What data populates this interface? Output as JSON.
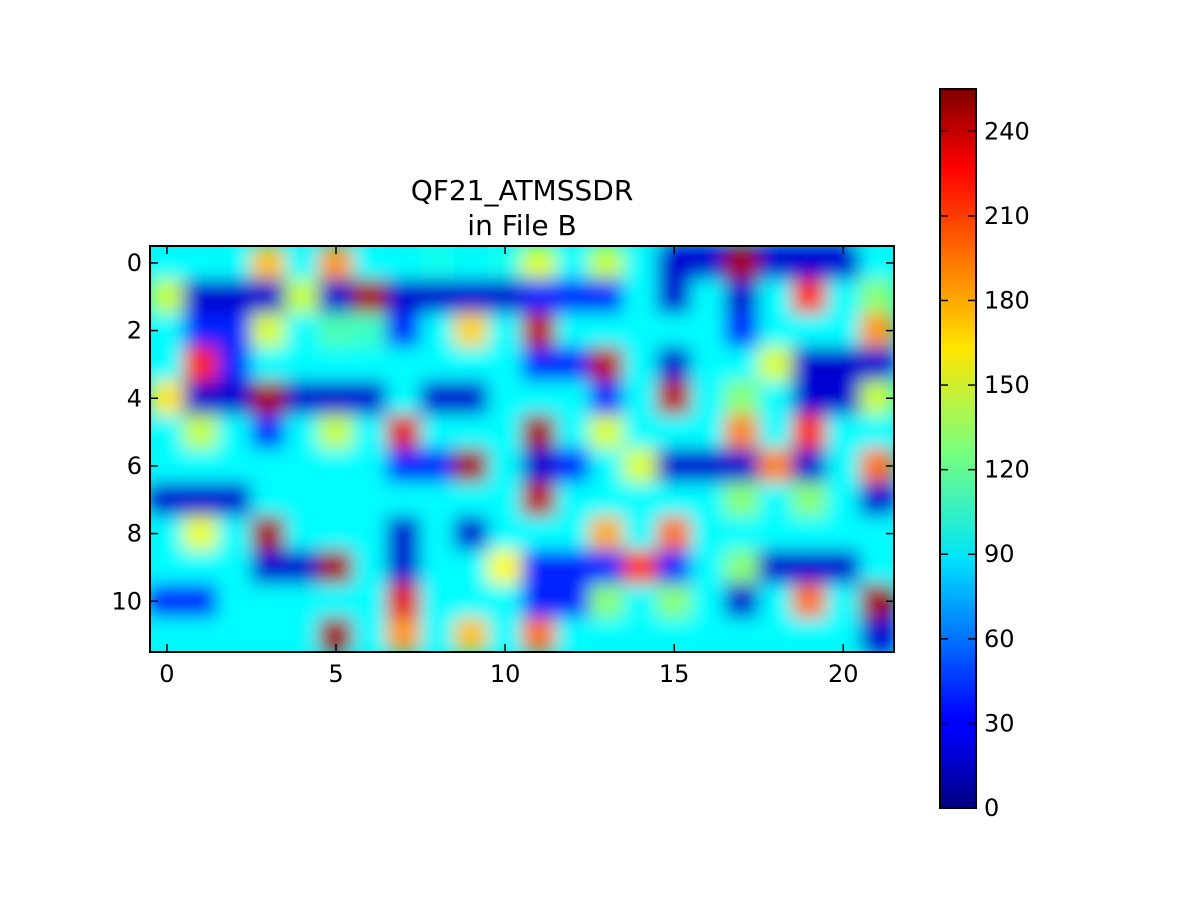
{
  "chart_data": {
    "type": "heatmap",
    "title": "QF21_ATMSSDR",
    "subtitle": "in File B",
    "xlabel": "",
    "ylabel": "",
    "xlim": [
      -0.5,
      21.5
    ],
    "ylim": [
      11.5,
      -0.5
    ],
    "x_ticks": [
      0,
      5,
      10,
      15,
      20
    ],
    "y_ticks": [
      0,
      2,
      4,
      6,
      8,
      10
    ],
    "colormap": "jet",
    "color_range": [
      0,
      255
    ],
    "colorbar_ticks": [
      0,
      30,
      60,
      90,
      120,
      150,
      180,
      210,
      240
    ],
    "interpolation": "bicubic",
    "grid": false,
    "rows": 12,
    "cols": 22,
    "values": [
      [
        95,
        95,
        95,
        175,
        95,
        185,
        95,
        95,
        100,
        95,
        100,
        150,
        95,
        145,
        95,
        20,
        20,
        245,
        20,
        20,
        20,
        95
      ],
      [
        145,
        20,
        20,
        20,
        145,
        20,
        245,
        20,
        20,
        20,
        20,
        40,
        40,
        40,
        95,
        20,
        95,
        20,
        95,
        215,
        95,
        130
      ],
      [
        95,
        40,
        40,
        150,
        95,
        115,
        110,
        40,
        95,
        170,
        95,
        240,
        95,
        95,
        95,
        95,
        95,
        40,
        95,
        95,
        95,
        185
      ],
      [
        95,
        215,
        40,
        95,
        95,
        95,
        95,
        95,
        95,
        95,
        95,
        40,
        40,
        240,
        95,
        20,
        95,
        95,
        150,
        20,
        20,
        20
      ],
      [
        165,
        20,
        20,
        245,
        20,
        20,
        20,
        95,
        20,
        20,
        95,
        95,
        95,
        40,
        95,
        240,
        95,
        130,
        95,
        20,
        20,
        145
      ],
      [
        95,
        145,
        95,
        40,
        95,
        145,
        95,
        230,
        95,
        95,
        95,
        245,
        95,
        150,
        95,
        95,
        95,
        190,
        95,
        215,
        95,
        95
      ],
      [
        95,
        95,
        95,
        95,
        95,
        95,
        95,
        40,
        40,
        245,
        95,
        20,
        40,
        95,
        150,
        20,
        20,
        20,
        190,
        20,
        95,
        195
      ],
      [
        20,
        20,
        20,
        95,
        95,
        95,
        95,
        95,
        95,
        95,
        95,
        240,
        95,
        95,
        95,
        95,
        95,
        130,
        95,
        130,
        95,
        20
      ],
      [
        95,
        155,
        95,
        245,
        95,
        95,
        95,
        20,
        95,
        20,
        95,
        95,
        95,
        180,
        95,
        195,
        95,
        95,
        95,
        95,
        95,
        95
      ],
      [
        95,
        95,
        95,
        20,
        20,
        245,
        95,
        20,
        95,
        95,
        160,
        40,
        40,
        40,
        210,
        40,
        95,
        130,
        20,
        20,
        20,
        95
      ],
      [
        40,
        40,
        95,
        95,
        95,
        95,
        95,
        230,
        95,
        95,
        95,
        40,
        40,
        130,
        95,
        130,
        95,
        20,
        95,
        195,
        95,
        245
      ],
      [
        95,
        95,
        95,
        95,
        95,
        245,
        95,
        185,
        95,
        175,
        95,
        195,
        95,
        95,
        95,
        95,
        95,
        95,
        95,
        95,
        95,
        20
      ]
    ]
  }
}
